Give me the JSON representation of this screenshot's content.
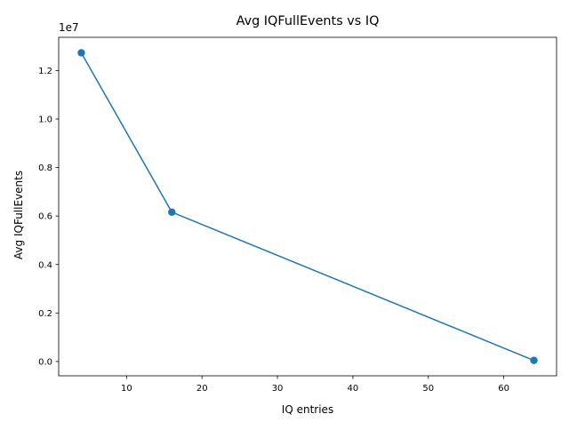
{
  "chart_data": {
    "type": "line",
    "title": "Avg IQFullEvents vs IQ",
    "xlabel": "IQ entries",
    "ylabel": "Avg IQFullEvents",
    "y_offset_label": "1e7",
    "x": [
      4,
      16,
      64
    ],
    "series": [
      {
        "values": [
          12730000,
          6160000,
          45000
        ]
      }
    ],
    "xlim": [
      1,
      67
    ],
    "ylim": [
      -590000,
      13370000
    ],
    "xticks": [
      10,
      20,
      30,
      40,
      50,
      60
    ],
    "xtick_labels": [
      "10",
      "20",
      "30",
      "40",
      "50",
      "60"
    ],
    "yticks": [
      0,
      2000000,
      4000000,
      6000000,
      8000000,
      10000000,
      12000000
    ],
    "ytick_labels": [
      "0.0",
      "0.2",
      "0.4",
      "0.6",
      "0.8",
      "1.0",
      "1.2"
    ],
    "grid": false,
    "color": "#1f77b4"
  }
}
